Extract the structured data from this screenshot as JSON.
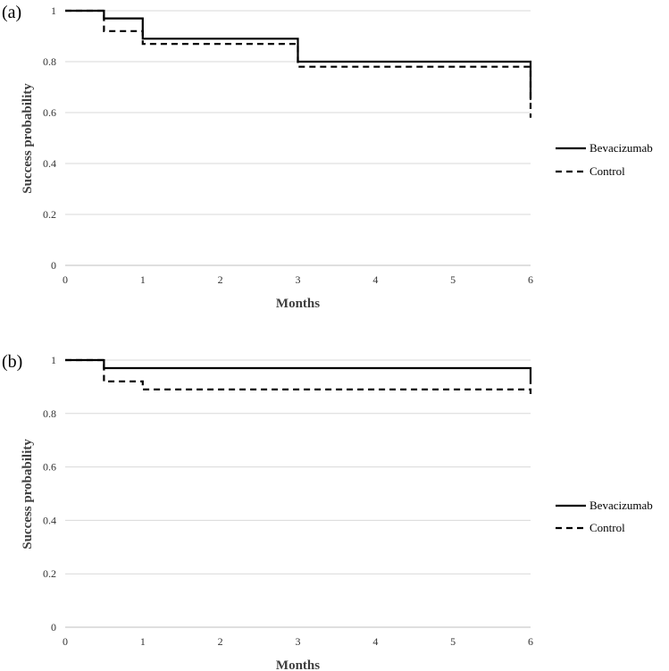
{
  "chart_data": [
    {
      "type": "line",
      "panel_label": "(a)",
      "xlabel": "Months",
      "ylabel": "Success probability",
      "xlim": [
        0,
        6
      ],
      "ylim": [
        0,
        1
      ],
      "x_ticks": [
        "0",
        "1",
        "2",
        "3",
        "4",
        "5",
        "6"
      ],
      "y_ticks": [
        "0",
        "0.2",
        "0.4",
        "0.6",
        "0.8",
        "1"
      ],
      "grid": "horizontal",
      "legend_position": "right",
      "series": [
        {
          "name": "Bevacizumab",
          "style": "solid",
          "color": "#000000",
          "steps": [
            [
              0,
              1
            ],
            [
              0.5,
              1
            ],
            [
              0.5,
              0.97
            ],
            [
              1,
              0.97
            ],
            [
              1,
              0.89
            ],
            [
              3,
              0.89
            ],
            [
              3,
              0.8
            ],
            [
              6,
              0.8
            ],
            [
              6,
              0.65
            ]
          ]
        },
        {
          "name": "Control",
          "style": "dashed",
          "color": "#000000",
          "steps": [
            [
              0,
              1
            ],
            [
              0.5,
              1
            ],
            [
              0.5,
              0.92
            ],
            [
              1,
              0.92
            ],
            [
              1,
              0.87
            ],
            [
              3,
              0.87
            ],
            [
              3,
              0.78
            ],
            [
              6,
              0.78
            ],
            [
              6,
              0.58
            ]
          ]
        }
      ]
    },
    {
      "type": "line",
      "panel_label": "(b)",
      "xlabel": "Months",
      "ylabel": "Success probability",
      "xlim": [
        0,
        6
      ],
      "ylim": [
        0,
        1
      ],
      "x_ticks": [
        "0",
        "1",
        "2",
        "3",
        "4",
        "5",
        "6"
      ],
      "y_ticks": [
        "0",
        "0.2",
        "0.4",
        "0.6",
        "0.8",
        "1"
      ],
      "grid": "horizontal",
      "legend_position": "right",
      "series": [
        {
          "name": "Bevacizumab",
          "style": "solid",
          "color": "#000000",
          "steps": [
            [
              0,
              1
            ],
            [
              0.5,
              1
            ],
            [
              0.5,
              0.97
            ],
            [
              6,
              0.97
            ],
            [
              6,
              0.91
            ]
          ]
        },
        {
          "name": "Control",
          "style": "dashed",
          "color": "#000000",
          "steps": [
            [
              0,
              1
            ],
            [
              0.5,
              1
            ],
            [
              0.5,
              0.92
            ],
            [
              1,
              0.92
            ],
            [
              1,
              0.89
            ],
            [
              6,
              0.89
            ],
            [
              6,
              0.86
            ]
          ]
        }
      ]
    }
  ]
}
